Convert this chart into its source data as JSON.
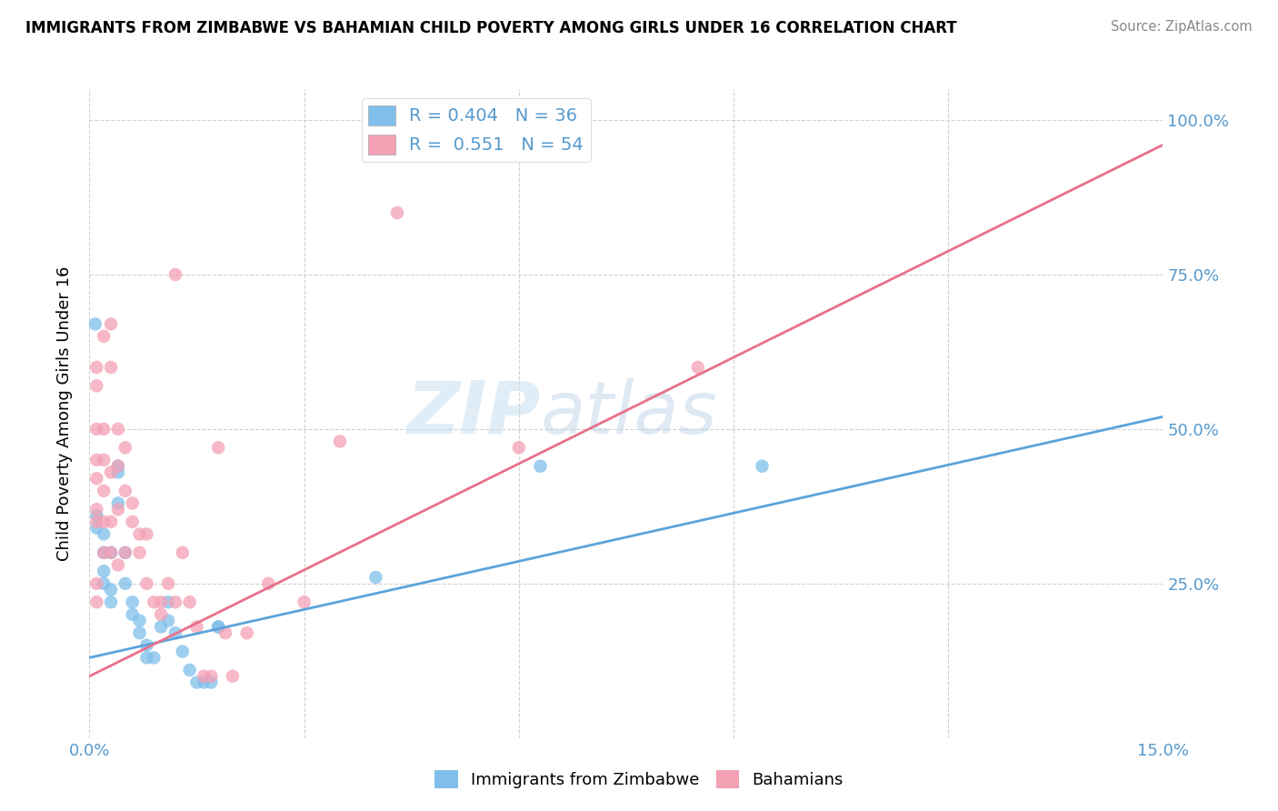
{
  "title": "IMMIGRANTS FROM ZIMBABWE VS BAHAMIAN CHILD POVERTY AMONG GIRLS UNDER 16 CORRELATION CHART",
  "source": "Source: ZipAtlas.com",
  "ylabel": "Child Poverty Among Girls Under 16",
  "xlim": [
    0.0,
    0.15
  ],
  "ylim": [
    0.0,
    1.05
  ],
  "ytick_positions": [
    0.0,
    0.25,
    0.5,
    0.75,
    1.0
  ],
  "ytick_labels_right": [
    "",
    "25.0%",
    "50.0%",
    "75.0%",
    "100.0%"
  ],
  "legend_label1": "R = 0.404   N = 36",
  "legend_label2": "R =  0.551   N = 54",
  "legend_xlabel1": "Immigrants from Zimbabwe",
  "legend_xlabel2": "Bahamians",
  "color_blue": "#7fbfea",
  "color_pink": "#f4a0b5",
  "color_blue_line": "#5ba3d9",
  "color_pink_line": "#e8708a",
  "color_blue_text": "#5599cc",
  "color_grid": "#cccccc",
  "watermark_zip": "ZIP",
  "watermark_atlas": "atlas",
  "blue_points": [
    [
      0.0008,
      0.67
    ],
    [
      0.001,
      0.36
    ],
    [
      0.001,
      0.34
    ],
    [
      0.002,
      0.33
    ],
    [
      0.002,
      0.3
    ],
    [
      0.002,
      0.27
    ],
    [
      0.002,
      0.25
    ],
    [
      0.003,
      0.24
    ],
    [
      0.003,
      0.22
    ],
    [
      0.003,
      0.3
    ],
    [
      0.004,
      0.43
    ],
    [
      0.004,
      0.44
    ],
    [
      0.004,
      0.38
    ],
    [
      0.005,
      0.3
    ],
    [
      0.005,
      0.25
    ],
    [
      0.006,
      0.22
    ],
    [
      0.006,
      0.2
    ],
    [
      0.007,
      0.19
    ],
    [
      0.007,
      0.17
    ],
    [
      0.008,
      0.15
    ],
    [
      0.008,
      0.13
    ],
    [
      0.009,
      0.13
    ],
    [
      0.01,
      0.18
    ],
    [
      0.011,
      0.22
    ],
    [
      0.011,
      0.19
    ],
    [
      0.012,
      0.17
    ],
    [
      0.013,
      0.14
    ],
    [
      0.014,
      0.11
    ],
    [
      0.015,
      0.09
    ],
    [
      0.016,
      0.09
    ],
    [
      0.017,
      0.09
    ],
    [
      0.018,
      0.18
    ],
    [
      0.018,
      0.18
    ],
    [
      0.04,
      0.26
    ],
    [
      0.063,
      0.44
    ],
    [
      0.094,
      0.44
    ]
  ],
  "pink_points": [
    [
      0.001,
      0.22
    ],
    [
      0.001,
      0.25
    ],
    [
      0.001,
      0.35
    ],
    [
      0.001,
      0.37
    ],
    [
      0.001,
      0.42
    ],
    [
      0.001,
      0.45
    ],
    [
      0.001,
      0.5
    ],
    [
      0.001,
      0.57
    ],
    [
      0.001,
      0.6
    ],
    [
      0.002,
      0.3
    ],
    [
      0.002,
      0.35
    ],
    [
      0.002,
      0.4
    ],
    [
      0.002,
      0.45
    ],
    [
      0.002,
      0.5
    ],
    [
      0.002,
      0.65
    ],
    [
      0.003,
      0.3
    ],
    [
      0.003,
      0.35
    ],
    [
      0.003,
      0.43
    ],
    [
      0.003,
      0.6
    ],
    [
      0.003,
      0.67
    ],
    [
      0.004,
      0.28
    ],
    [
      0.004,
      0.37
    ],
    [
      0.004,
      0.44
    ],
    [
      0.004,
      0.5
    ],
    [
      0.005,
      0.3
    ],
    [
      0.005,
      0.4
    ],
    [
      0.005,
      0.47
    ],
    [
      0.006,
      0.35
    ],
    [
      0.006,
      0.38
    ],
    [
      0.007,
      0.3
    ],
    [
      0.007,
      0.33
    ],
    [
      0.008,
      0.25
    ],
    [
      0.008,
      0.33
    ],
    [
      0.009,
      0.22
    ],
    [
      0.01,
      0.2
    ],
    [
      0.01,
      0.22
    ],
    [
      0.011,
      0.25
    ],
    [
      0.012,
      0.22
    ],
    [
      0.012,
      0.75
    ],
    [
      0.013,
      0.3
    ],
    [
      0.014,
      0.22
    ],
    [
      0.015,
      0.18
    ],
    [
      0.016,
      0.1
    ],
    [
      0.017,
      0.1
    ],
    [
      0.018,
      0.47
    ],
    [
      0.019,
      0.17
    ],
    [
      0.02,
      0.1
    ],
    [
      0.022,
      0.17
    ],
    [
      0.025,
      0.25
    ],
    [
      0.03,
      0.22
    ],
    [
      0.035,
      0.48
    ],
    [
      0.043,
      0.85
    ],
    [
      0.06,
      0.47
    ],
    [
      0.085,
      0.6
    ]
  ],
  "blue_line_x": [
    0.0,
    0.15
  ],
  "blue_line_y": [
    0.13,
    0.52
  ],
  "pink_line_x": [
    0.0,
    0.15
  ],
  "pink_line_y": [
    0.1,
    0.96
  ]
}
